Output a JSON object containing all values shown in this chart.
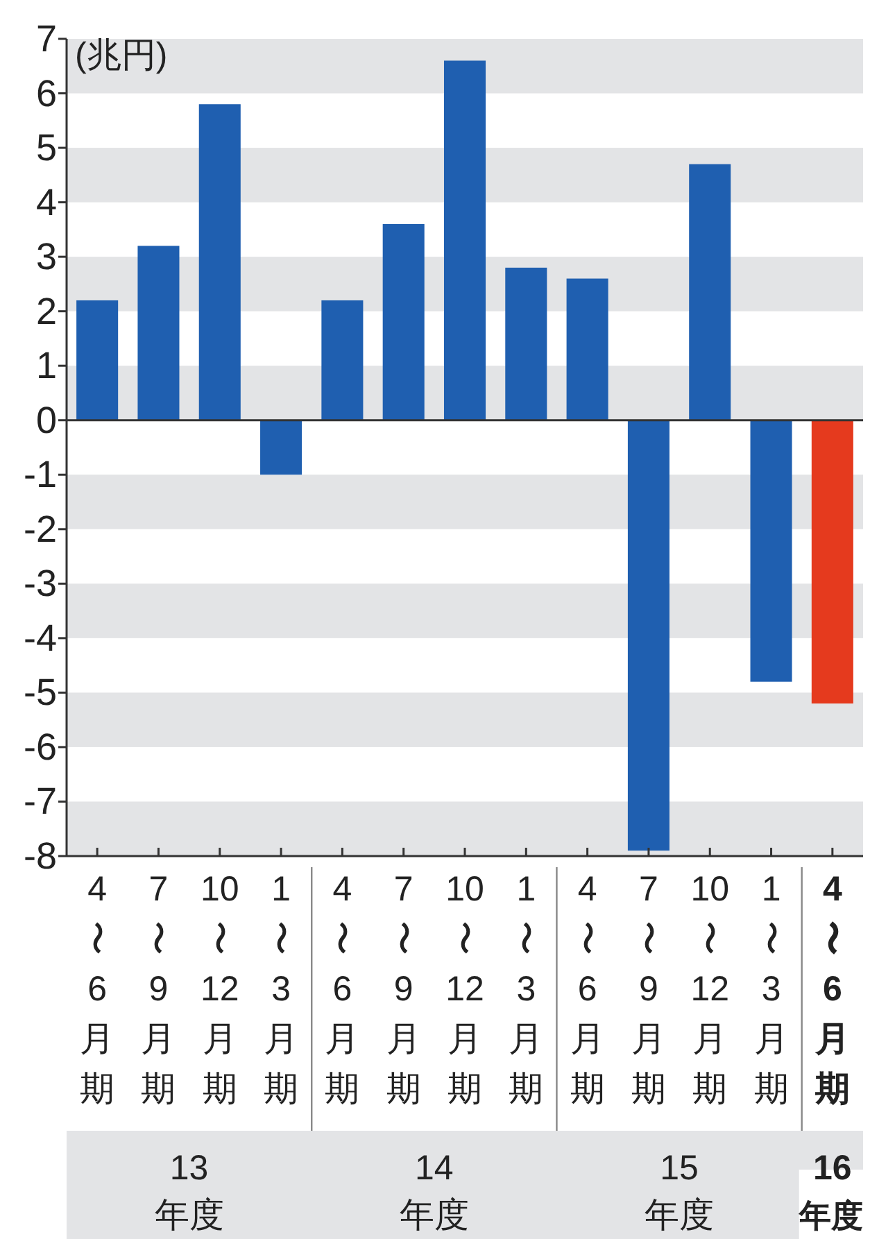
{
  "chart_data": {
    "type": "bar",
    "ylabel": "(兆円)",
    "categories": [
      "4〜6月期",
      "7〜9月期",
      "10〜12月期",
      "1〜3月期",
      "4〜6月期",
      "7〜9月期",
      "10〜12月期",
      "1〜3月期",
      "4〜6月期",
      "7〜9月期",
      "10〜12月期",
      "1〜3月期",
      "4〜6月期"
    ],
    "values": [
      2.2,
      3.2,
      5.8,
      -1.0,
      2.2,
      3.6,
      6.6,
      2.8,
      2.6,
      -7.9,
      4.7,
      -4.8,
      -5.2
    ],
    "colors": [
      "#1f5fb0",
      "#1f5fb0",
      "#1f5fb0",
      "#1f5fb0",
      "#1f5fb0",
      "#1f5fb0",
      "#1f5fb0",
      "#1f5fb0",
      "#1f5fb0",
      "#1f5fb0",
      "#1f5fb0",
      "#1f5fb0",
      "#e53a1e"
    ],
    "ylim": [
      -8,
      7
    ],
    "yticks": [
      {
        "value": -8,
        "label": "-8"
      },
      {
        "value": -7,
        "label": "-7"
      },
      {
        "value": -6,
        "label": "-6"
      },
      {
        "value": -5,
        "label": "-5"
      },
      {
        "value": -4,
        "label": "-4"
      },
      {
        "value": -3,
        "label": "-3"
      },
      {
        "value": -2,
        "label": "-2"
      },
      {
        "value": -1,
        "label": "-1"
      },
      0,
      1,
      2,
      3,
      4,
      5,
      6,
      7
    ],
    "grid": "y",
    "annotations": [
      "13年度",
      "14年度",
      "15年度",
      "16年度"
    ]
  }
}
